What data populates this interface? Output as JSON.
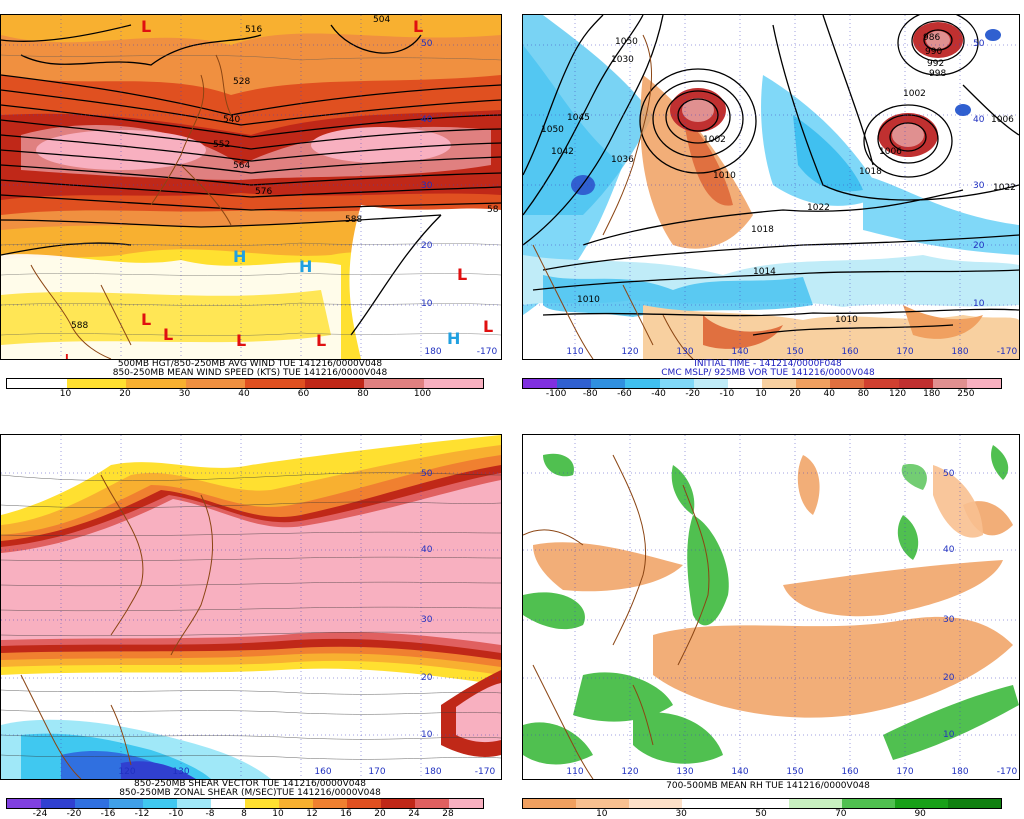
{
  "panels": {
    "tl": {
      "caption1": "500MB HGT/850-250MB AVG WIND TUE 141216/0000V048",
      "caption2": "850-250MB MEAN WIND SPEED (KTS) TUE 141216/0000V048",
      "colors": [
        "#ffffff",
        "#ffe030",
        "#f8b030",
        "#f09040",
        "#e05020",
        "#c02818",
        "#e08080",
        "#f8b0c0"
      ],
      "ticks": [
        "10",
        "20",
        "30",
        "40",
        "60",
        "80",
        "100"
      ],
      "contour_labels": [
        "516",
        "528",
        "540",
        "552",
        "564",
        "576",
        "588",
        "504",
        "588",
        "58"
      ],
      "lat_labels": [
        "50",
        "40",
        "30",
        "20",
        "10"
      ],
      "lon_labels": [
        "180",
        "-170"
      ],
      "symbols": [
        "L",
        "L",
        "L",
        "L",
        "L",
        "L",
        "L",
        "L",
        "L",
        "H",
        "H",
        "H"
      ]
    },
    "tr": {
      "caption1": "INITIAL TIME - 141214/0000F048",
      "caption2": "CMC MSLP/ 925MB VOR TUE 141216/0000V048",
      "colors": [
        "#8030e0",
        "#3060d0",
        "#3090e0",
        "#40c0f0",
        "#80d8f8",
        "#c0ecf8",
        "#ffffff",
        "#f8d0a0",
        "#f0a060",
        "#e07040",
        "#d04030",
        "#c03030",
        "#e09090",
        "#f8b0c0"
      ],
      "ticks": [
        "-100",
        "-80",
        "-60",
        "-40",
        "-20",
        "-10",
        "10",
        "20",
        "40",
        "80",
        "120",
        "180",
        "250"
      ],
      "contour_labels": [
        "1050",
        "1030",
        "1045",
        "1050",
        "1042",
        "1036",
        "1022",
        "1002",
        "1010",
        "1018",
        "1014",
        "1010",
        "1010",
        "1018",
        "1022",
        "1002",
        "1006",
        "1006",
        "992",
        "990",
        "998",
        "986"
      ],
      "lat_labels": [
        "50",
        "40",
        "30",
        "20",
        "10"
      ],
      "lon_labels": [
        "110",
        "120",
        "130",
        "140",
        "150",
        "160",
        "170",
        "180",
        "-170"
      ]
    },
    "bl": {
      "caption1": "850-250MB SHEAR VECTOR TUE 141216/0000V048",
      "caption2": "850-250MB ZONAL SHEAR (M/SEC)TUE 141216/0000V048",
      "colors": [
        "#8040e0",
        "#3040d0",
        "#3070e0",
        "#40a0e8",
        "#40c8f0",
        "#a0e8f8",
        "#ffffff",
        "#ffe030",
        "#f8b030",
        "#f08030",
        "#e05020",
        "#c02818",
        "#e06060",
        "#f8b0c0"
      ],
      "ticks": [
        "-24",
        "-20",
        "-16",
        "-12",
        "-10",
        "-8",
        "8",
        "10",
        "12",
        "16",
        "20",
        "24",
        "28"
      ],
      "lat_labels": [
        "50",
        "40",
        "30",
        "20",
        "10"
      ],
      "lon_labels": [
        "120",
        "130",
        "160",
        "170",
        "180",
        "-170"
      ]
    },
    "br": {
      "caption1": "700-500MB MEAN RH TUE 141216/0000V048",
      "colors": [
        "#f0a060",
        "#f8c090",
        "#fde0c8",
        "#ffffff",
        "#ffffff",
        "#c8f0c0",
        "#50c050",
        "#18a018",
        "#108010"
      ],
      "ticks": [
        "10",
        "30",
        "50",
        "70",
        "90"
      ],
      "lat_labels": [
        "50",
        "40",
        "30",
        "20",
        "10"
      ],
      "lon_labels": [
        "110",
        "120",
        "130",
        "140",
        "150",
        "160",
        "170",
        "180",
        "-170"
      ]
    }
  }
}
